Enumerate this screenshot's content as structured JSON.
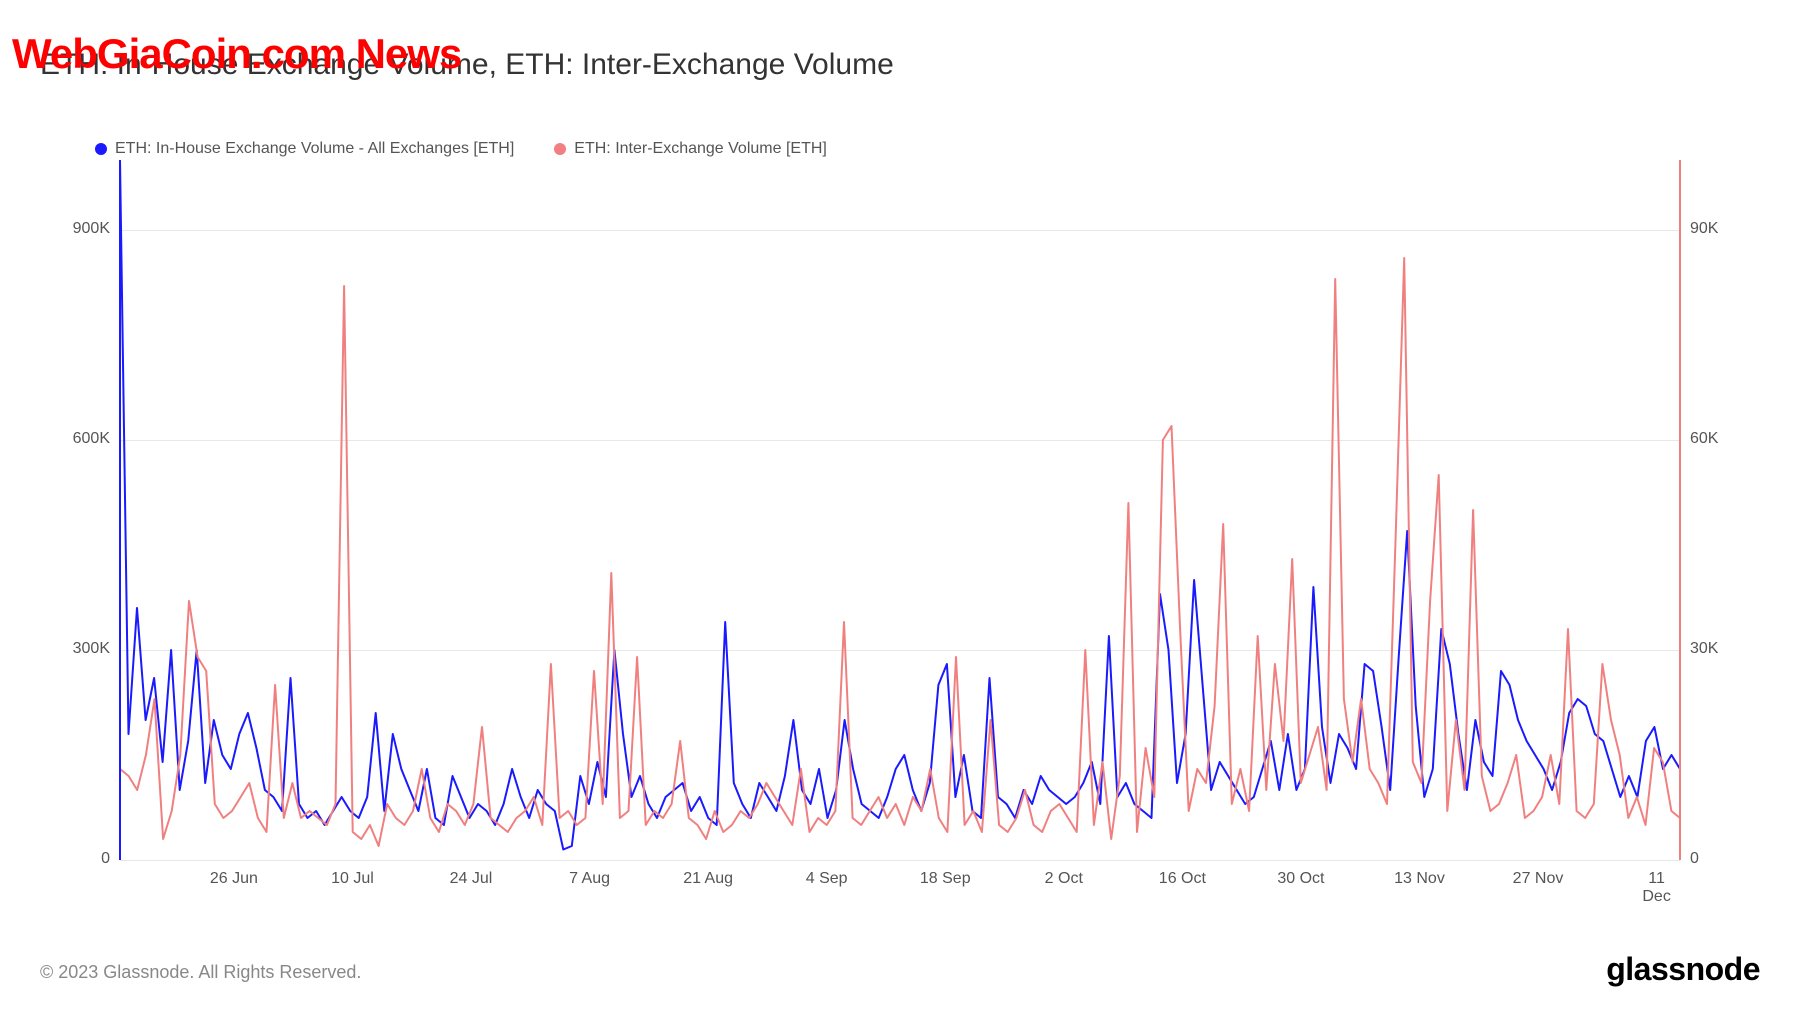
{
  "watermark": "WebGiaCoin.com News",
  "title": "ETH: In-House Exchange Volume, ETH: Inter-Exchange Volume",
  "legend": {
    "series1": {
      "label": "ETH: In-House Exchange Volume - All Exchanges [ETH]",
      "color": "#1a1aff"
    },
    "series2": {
      "label": "ETH: Inter-Exchange Volume [ETH]",
      "color": "#f08080"
    }
  },
  "footer": {
    "copyright": "© 2023 Glassnode. All Rights Reserved.",
    "brand": "glassnode"
  },
  "chart": {
    "type": "line",
    "background_color": "#ffffff",
    "grid_color": "#e8e8e8",
    "text_color": "#555555",
    "left_axis": {
      "min": 0,
      "max": 1000000,
      "ticks": [
        0,
        300000,
        600000,
        900000
      ],
      "tick_labels": [
        "0",
        "300K",
        "600K",
        "900K"
      ]
    },
    "right_axis": {
      "min": 0,
      "max": 100000,
      "ticks": [
        0,
        30000,
        60000,
        90000
      ],
      "tick_labels": [
        "0",
        "30K",
        "60K",
        "90K"
      ]
    },
    "x_axis": {
      "labels": [
        "26 Jun",
        "10 Jul",
        "24 Jul",
        "7 Aug",
        "21 Aug",
        "4 Sep",
        "18 Sep",
        "2 Oct",
        "16 Oct",
        "30 Oct",
        "13 Nov",
        "27 Nov",
        "11 Dec"
      ],
      "positions": [
        0.073,
        0.149,
        0.225,
        0.301,
        0.377,
        0.453,
        0.529,
        0.605,
        0.681,
        0.757,
        0.833,
        0.909,
        0.985
      ]
    },
    "series": [
      {
        "name": "in_house",
        "axis": "left",
        "color": "#1a1aff",
        "line_width": 2,
        "data": [
          1000000,
          180000,
          360000,
          200000,
          260000,
          140000,
          300000,
          100000,
          170000,
          300000,
          110000,
          200000,
          150000,
          130000,
          180000,
          210000,
          160000,
          100000,
          90000,
          70000,
          260000,
          80000,
          60000,
          70000,
          50000,
          70000,
          90000,
          70000,
          60000,
          90000,
          210000,
          70000,
          180000,
          130000,
          100000,
          70000,
          130000,
          60000,
          50000,
          120000,
          90000,
          60000,
          80000,
          70000,
          50000,
          80000,
          130000,
          90000,
          60000,
          100000,
          80000,
          70000,
          15000,
          20000,
          120000,
          80000,
          140000,
          90000,
          300000,
          180000,
          90000,
          120000,
          80000,
          60000,
          90000,
          100000,
          110000,
          70000,
          90000,
          60000,
          50000,
          340000,
          110000,
          80000,
          60000,
          110000,
          90000,
          70000,
          120000,
          200000,
          100000,
          80000,
          130000,
          60000,
          100000,
          200000,
          130000,
          80000,
          70000,
          60000,
          90000,
          130000,
          150000,
          100000,
          70000,
          110000,
          250000,
          280000,
          90000,
          150000,
          70000,
          60000,
          260000,
          90000,
          80000,
          60000,
          100000,
          80000,
          120000,
          100000,
          90000,
          80000,
          90000,
          110000,
          140000,
          80000,
          320000,
          90000,
          110000,
          80000,
          70000,
          60000,
          380000,
          300000,
          110000,
          180000,
          400000,
          250000,
          100000,
          140000,
          120000,
          100000,
          80000,
          90000,
          130000,
          170000,
          100000,
          180000,
          100000,
          130000,
          390000,
          190000,
          110000,
          180000,
          160000,
          130000,
          280000,
          270000,
          190000,
          100000,
          290000,
          470000,
          220000,
          90000,
          130000,
          330000,
          280000,
          180000,
          100000,
          200000,
          140000,
          120000,
          270000,
          250000,
          200000,
          170000,
          150000,
          130000,
          100000,
          140000,
          210000,
          230000,
          220000,
          180000,
          170000,
          130000,
          90000,
          120000,
          90000,
          170000,
          190000,
          130000,
          150000,
          130000
        ]
      },
      {
        "name": "inter",
        "axis": "right",
        "color": "#f08080",
        "line_width": 2,
        "data": [
          13000,
          12000,
          10000,
          15000,
          23000,
          3000,
          7000,
          15000,
          37000,
          29000,
          27000,
          8000,
          6000,
          7000,
          9000,
          11000,
          6000,
          4000,
          25000,
          6000,
          11000,
          6000,
          7000,
          6000,
          5000,
          8000,
          82000,
          4000,
          3000,
          5000,
          2000,
          8000,
          6000,
          5000,
          7000,
          13000,
          6000,
          4000,
          8000,
          7000,
          5000,
          8000,
          19000,
          6000,
          5000,
          4000,
          6000,
          7000,
          9000,
          5000,
          28000,
          6000,
          7000,
          5000,
          6000,
          27000,
          8000,
          41000,
          6000,
          7000,
          29000,
          5000,
          7000,
          6000,
          8000,
          17000,
          6000,
          5000,
          3000,
          7000,
          4000,
          5000,
          7000,
          6000,
          8000,
          11000,
          9000,
          7000,
          5000,
          13000,
          4000,
          6000,
          5000,
          7000,
          34000,
          6000,
          5000,
          7000,
          9000,
          6000,
          8000,
          5000,
          9000,
          7000,
          13000,
          6000,
          4000,
          29000,
          5000,
          7000,
          4000,
          20000,
          5000,
          4000,
          6000,
          10000,
          5000,
          4000,
          7000,
          8000,
          6000,
          4000,
          30000,
          5000,
          14000,
          3000,
          12000,
          51000,
          4000,
          16000,
          9000,
          60000,
          62000,
          33000,
          7000,
          13000,
          11000,
          22000,
          48000,
          8000,
          13000,
          7000,
          32000,
          10000,
          28000,
          17000,
          43000,
          11000,
          15000,
          19000,
          10000,
          83000,
          23000,
          14000,
          23000,
          13000,
          11000,
          8000,
          46000,
          86000,
          14000,
          11000,
          37000,
          55000,
          7000,
          20000,
          10000,
          50000,
          12000,
          7000,
          8000,
          11000,
          15000,
          6000,
          7000,
          9000,
          15000,
          8000,
          33000,
          7000,
          6000,
          8000,
          28000,
          20000,
          15000,
          6000,
          9000,
          5000,
          16000,
          14000,
          7000,
          6000
        ]
      }
    ]
  }
}
